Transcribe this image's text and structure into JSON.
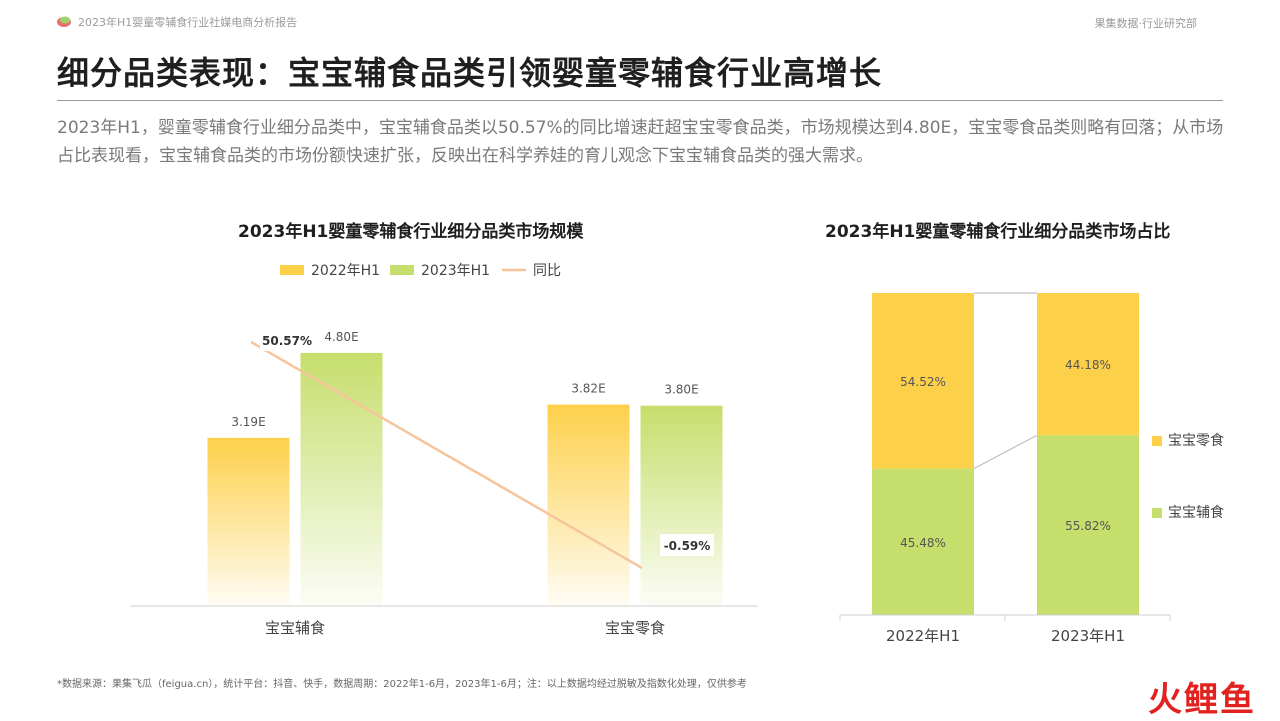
{
  "header": {
    "report_name": "2023年H1婴童零辅食行业社媒电商分析报告",
    "org_name": "果集数据·行业研究部"
  },
  "title": "细分品类表现：宝宝辅食品类引领婴童零辅食行业高增长",
  "summary": "2023年H1，婴童零辅食行业细分品类中，宝宝辅食品类以50.57%的同比增速赶超宝宝零食品类，市场规模达到4.80E，宝宝零食品类则略有回落；从市场占比表现看，宝宝辅食品类的市场份额快速扩张，反映出在科学养娃的育儿观念下宝宝辅食品类的强大需求。",
  "footnote": "*数据来源：果集飞瓜（feigua.cn），统计平台：抖音、快手，数据周期：2022年1-6月，2023年1-6月；注：以上数据均经过脱敏及指数化处理，仅供参考",
  "watermark": "火鲤鱼",
  "colors": {
    "yellow": "#fdd04a",
    "green": "#c6de6c",
    "line": "#f6c59c",
    "title_rule": "#9b9b9b"
  },
  "chart_data": [
    {
      "type": "bar",
      "title": "2023年H1婴童零辅食行业细分品类市场规模",
      "categories": [
        "宝宝辅食",
        "宝宝零食"
      ],
      "series": [
        {
          "name": "2022年H1",
          "values": [
            3.19,
            3.82
          ],
          "labels": [
            "3.19E",
            "3.82E"
          ],
          "color": "#fdd04a"
        },
        {
          "name": "2023年H1",
          "values": [
            4.8,
            3.8
          ],
          "labels": [
            "4.80E",
            "3.80E"
          ],
          "color": "#c6de6c"
        }
      ],
      "line_series": {
        "name": "同比",
        "values": [
          50.57,
          -0.59
        ],
        "labels": [
          "50.57%",
          "-0.59%"
        ],
        "color": "#f6c59c"
      },
      "legend": [
        "2022年H1",
        "2023年H1",
        "同比"
      ],
      "legend_position": "top",
      "ylim": [
        0,
        5.5
      ],
      "grid": false
    },
    {
      "type": "bar",
      "stacked": true,
      "normalized": true,
      "title": "2023年H1婴童零辅食行业细分品类市场占比",
      "categories": [
        "2022年H1",
        "2023年H1"
      ],
      "series": [
        {
          "name": "宝宝辅食",
          "values": [
            45.48,
            55.82
          ],
          "labels": [
            "45.48%",
            "55.82%"
          ],
          "color": "#c6de6c"
        },
        {
          "name": "宝宝零食",
          "values": [
            54.52,
            44.18
          ],
          "labels": [
            "54.52%",
            "44.18%"
          ],
          "color": "#fdd04a"
        }
      ],
      "legend": [
        "宝宝零食",
        "宝宝辅食"
      ],
      "legend_position": "right",
      "ylim": [
        0,
        100
      ],
      "grid": false
    }
  ]
}
